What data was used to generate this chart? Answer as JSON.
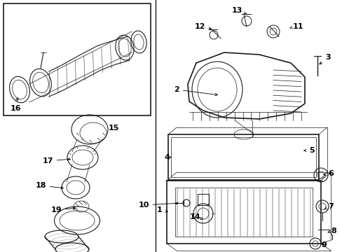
{
  "bg_color": "#ffffff",
  "line_color": "#1a1a1a",
  "font_size": 8,
  "bold_font": true
}
